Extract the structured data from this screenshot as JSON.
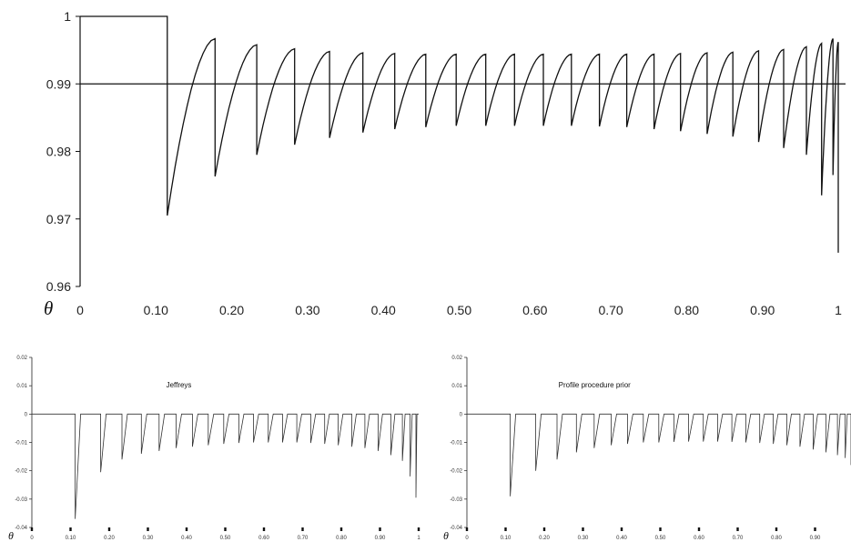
{
  "chart_data": [
    {
      "type": "line",
      "title": "",
      "xlabel": "θ",
      "ylabel": "",
      "xlim": [
        0,
        1
      ],
      "ylim": [
        0.96,
        1.0
      ],
      "x_tick_labels": [
        "0",
        "0.10",
        "0.20",
        "0.30",
        "0.40",
        "0.50",
        "0.60",
        "0.70",
        "0.80",
        "0.90",
        "1"
      ],
      "y_tick_labels": [
        "1",
        "0.99",
        "0.98",
        "0.97",
        "0.96"
      ],
      "y_ticks": [
        1.0,
        0.99,
        0.98,
        0.97,
        0.96
      ],
      "reference_line": 0.99,
      "grid": false,
      "series": [
        {
          "teeth_x": [
            0.0,
            0.115,
            0.178,
            0.233,
            0.283,
            0.329,
            0.373,
            0.415,
            0.456,
            0.496,
            0.535,
            0.573,
            0.611,
            0.648,
            0.685,
            0.721,
            0.757,
            0.792,
            0.827,
            0.861,
            0.895,
            0.928,
            0.958,
            0.978,
            0.993,
            1.0
          ],
          "teeth_min": [
            1.0,
            0.9705,
            0.9763,
            0.9795,
            0.981,
            0.982,
            0.9828,
            0.9833,
            0.9836,
            0.9838,
            0.9838,
            0.9838,
            0.9838,
            0.9838,
            0.9837,
            0.9836,
            0.9833,
            0.983,
            0.9826,
            0.9822,
            0.9814,
            0.9805,
            0.9795,
            0.9735,
            0.9765
          ],
          "teeth_max": [
            1.0,
            0.9967,
            0.9958,
            0.9952,
            0.9948,
            0.9946,
            0.9945,
            0.9944,
            0.9944,
            0.9944,
            0.9944,
            0.9944,
            0.9944,
            0.9944,
            0.9944,
            0.9944,
            0.9945,
            0.9946,
            0.9947,
            0.9949,
            0.9951,
            0.9955,
            0.996,
            0.9967,
            0.9962
          ],
          "final_drop": 0.965
        }
      ]
    },
    {
      "type": "line",
      "title": "Jeffreys",
      "xlabel": "θ",
      "xlim": [
        0,
        1
      ],
      "ylim": [
        -0.04,
        0.02
      ],
      "x_tick_labels": [
        "0",
        "0.10",
        "0.20",
        "0.30",
        "0.40",
        "0.50",
        "0.60",
        "0.70",
        "0.80",
        "0.90",
        "1"
      ],
      "y_tick_labels": [
        "0.02",
        "0.01",
        "0",
        "-0.01",
        "-0.02",
        "-0.03",
        "-0.04"
      ],
      "y_ticks": [
        0.02,
        0.01,
        0.0,
        -0.01,
        -0.02,
        -0.03,
        -0.04
      ],
      "series": [
        {
          "spikes_x": [
            0.112,
            0.178,
            0.233,
            0.283,
            0.329,
            0.373,
            0.415,
            0.456,
            0.496,
            0.535,
            0.573,
            0.611,
            0.648,
            0.685,
            0.721,
            0.757,
            0.792,
            0.827,
            0.861,
            0.895,
            0.928,
            0.958,
            0.978,
            0.993
          ],
          "spikes_y": [
            -0.037,
            -0.0205,
            -0.016,
            -0.014,
            -0.013,
            -0.012,
            -0.0115,
            -0.011,
            -0.0105,
            -0.0102,
            -0.01,
            -0.01,
            -0.01,
            -0.01,
            -0.0102,
            -0.0105,
            -0.011,
            -0.0115,
            -0.012,
            -0.013,
            -0.0145,
            -0.0165,
            -0.022,
            -0.0295
          ]
        }
      ]
    },
    {
      "type": "line",
      "title": "Profile procedure prior",
      "xlabel": "θ",
      "xlim": [
        0,
        1
      ],
      "ylim": [
        -0.04,
        0.02
      ],
      "x_tick_labels": [
        "0",
        "0.10",
        "0.20",
        "0.30",
        "0.40",
        "0.50",
        "0.60",
        "0.70",
        "0.80",
        "0.90",
        "1"
      ],
      "y_tick_labels": [
        "0.02",
        "0.01",
        "0",
        "-0.01",
        "-0.02",
        "-0.03",
        "-0.04"
      ],
      "y_ticks": [
        0.02,
        0.01,
        0.0,
        -0.01,
        -0.02,
        -0.03,
        -0.04
      ],
      "series": [
        {
          "spikes_x": [
            0.112,
            0.178,
            0.233,
            0.283,
            0.329,
            0.373,
            0.415,
            0.456,
            0.496,
            0.535,
            0.573,
            0.611,
            0.648,
            0.685,
            0.721,
            0.757,
            0.792,
            0.827,
            0.861,
            0.895,
            0.928,
            0.958,
            0.978,
            0.993
          ],
          "spikes_y": [
            -0.029,
            -0.02,
            -0.016,
            -0.0135,
            -0.012,
            -0.011,
            -0.0105,
            -0.01,
            -0.01,
            -0.0098,
            -0.0097,
            -0.0097,
            -0.0097,
            -0.0098,
            -0.01,
            -0.0102,
            -0.0105,
            -0.011,
            -0.0115,
            -0.0125,
            -0.0135,
            -0.0145,
            -0.0155,
            -0.018
          ]
        }
      ]
    }
  ]
}
